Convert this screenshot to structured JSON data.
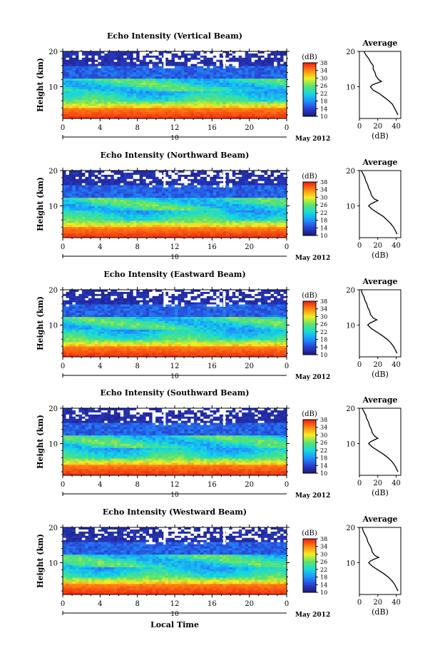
{
  "figure": {
    "xlabel": "Local Time",
    "date_label": "May 2012",
    "day_label": "10"
  },
  "panels": [
    {
      "title": "Echo Intensity (Vertical Beam)"
    },
    {
      "title": "Echo Intensity (Northward Beam)"
    },
    {
      "title": "Echo Intensity (Eastward Beam)"
    },
    {
      "title": "Echo Intensity (Southward Beam)"
    },
    {
      "title": "Echo Intensity (Westward Beam)"
    }
  ],
  "chart_data": [
    {
      "type": "heatmap",
      "title": "Echo Intensity (Vertical Beam)",
      "ylabel": "Height (km)",
      "xticks": [
        "0",
        "4",
        "8",
        "12",
        "16",
        "20",
        "0"
      ],
      "x_range": [
        0,
        24
      ],
      "ylim": [
        1,
        20
      ],
      "yticks": [
        10,
        20
      ],
      "colorbar": {
        "unit": "(dB)",
        "ticks": [
          "10",
          "14",
          "18",
          "22",
          "26",
          "30",
          "34",
          "38"
        ],
        "range": [
          10,
          38
        ]
      },
      "average_profile": {
        "title": "Average",
        "xlabel": "(dB)",
        "xlim": [
          0,
          45
        ],
        "xticks": [
          0,
          20,
          40
        ],
        "yticks": [
          10,
          20
        ],
        "height_km": [
          20,
          19,
          18,
          17,
          16,
          15,
          14,
          13,
          12,
          11.5,
          11,
          10.5,
          10,
          9,
          8,
          7,
          6,
          5,
          4,
          3,
          2
        ],
        "db": [
          5,
          7,
          10,
          12,
          15,
          15,
          17,
          18,
          21,
          24,
          19,
          14,
          12,
          15,
          22,
          27,
          32,
          36,
          38,
          40,
          42
        ]
      }
    },
    {
      "type": "heatmap",
      "title": "Echo Intensity (Northward Beam)",
      "ylabel": "Height (km)",
      "xticks": [
        "0",
        "4",
        "8",
        "12",
        "16",
        "20",
        "0"
      ],
      "x_range": [
        0,
        24
      ],
      "ylim": [
        1,
        20
      ],
      "yticks": [
        10,
        20
      ],
      "colorbar": {
        "unit": "(dB)",
        "ticks": [
          "10",
          "14",
          "18",
          "22",
          "26",
          "30",
          "34",
          "38"
        ],
        "range": [
          10,
          38
        ]
      },
      "average_profile": {
        "title": "Average",
        "xlabel": "(dB)",
        "xlim": [
          0,
          45
        ],
        "xticks": [
          0,
          20,
          40
        ],
        "yticks": [
          10,
          20
        ],
        "height_km": [
          20,
          19,
          18,
          17,
          16,
          15,
          14,
          13,
          12,
          11.5,
          11,
          10.5,
          10,
          9,
          8,
          7,
          6,
          5,
          4,
          3,
          2
        ],
        "db": [
          2,
          4,
          6,
          7,
          9,
          10,
          12,
          13,
          16,
          20,
          16,
          12,
          10,
          14,
          20,
          26,
          30,
          34,
          37,
          39,
          41
        ]
      }
    },
    {
      "type": "heatmap",
      "title": "Echo Intensity (Eastward Beam)",
      "ylabel": "Height (km)",
      "xticks": [
        "0",
        "4",
        "8",
        "12",
        "16",
        "20",
        "0"
      ],
      "x_range": [
        0,
        24
      ],
      "ylim": [
        1,
        20
      ],
      "yticks": [
        10,
        20
      ],
      "colorbar": {
        "unit": "(dB)",
        "ticks": [
          "10",
          "14",
          "18",
          "22",
          "26",
          "30",
          "34",
          "38"
        ],
        "range": [
          10,
          38
        ]
      },
      "average_profile": {
        "title": "Average",
        "xlabel": "(dB)",
        "xlim": [
          0,
          45
        ],
        "xticks": [
          0,
          20,
          40
        ],
        "yticks": [
          10,
          20
        ],
        "height_km": [
          20,
          19,
          18,
          17,
          16,
          15,
          14,
          13,
          12,
          11.5,
          11,
          10.5,
          10,
          9,
          8,
          7,
          6,
          5,
          4,
          3,
          2
        ],
        "db": [
          2,
          3,
          5,
          6,
          8,
          9,
          11,
          12,
          15,
          19,
          15,
          11,
          9,
          13,
          19,
          25,
          30,
          34,
          37,
          39,
          41
        ]
      }
    },
    {
      "type": "heatmap",
      "title": "Echo Intensity (Southward Beam)",
      "ylabel": "Height (km)",
      "xticks": [
        "0",
        "4",
        "8",
        "12",
        "16",
        "20",
        "0"
      ],
      "x_range": [
        0,
        24
      ],
      "ylim": [
        1,
        20
      ],
      "yticks": [
        10,
        20
      ],
      "colorbar": {
        "unit": "(dB)",
        "ticks": [
          "10",
          "14",
          "18",
          "22",
          "26",
          "30",
          "34",
          "38"
        ],
        "range": [
          10,
          38
        ]
      },
      "average_profile": {
        "title": "Average",
        "xlabel": "(dB)",
        "xlim": [
          0,
          45
        ],
        "xticks": [
          0,
          20,
          40
        ],
        "yticks": [
          10,
          20
        ],
        "height_km": [
          20,
          19,
          18,
          17,
          16,
          15,
          14,
          13,
          12,
          11.5,
          11,
          10.5,
          10,
          9,
          8,
          7,
          6,
          5,
          4,
          3,
          2
        ],
        "db": [
          3,
          5,
          7,
          8,
          10,
          11,
          13,
          14,
          17,
          20,
          16,
          12,
          10,
          14,
          20,
          26,
          31,
          35,
          38,
          40,
          42
        ]
      }
    },
    {
      "type": "heatmap",
      "title": "Echo Intensity (Westward Beam)",
      "ylabel": "Height (km)",
      "xticks": [
        "0",
        "4",
        "8",
        "12",
        "16",
        "20",
        "0"
      ],
      "x_range": [
        0,
        24
      ],
      "ylim": [
        1,
        20
      ],
      "yticks": [
        10,
        20
      ],
      "colorbar": {
        "unit": "(dB)",
        "ticks": [
          "10",
          "14",
          "18",
          "22",
          "26",
          "30",
          "34",
          "38"
        ],
        "range": [
          10,
          38
        ]
      },
      "average_profile": {
        "title": "Average",
        "xlabel": "(dB)",
        "xlim": [
          0,
          45
        ],
        "xticks": [
          0,
          20,
          40
        ],
        "yticks": [
          10,
          20
        ],
        "height_km": [
          20,
          19,
          18,
          17,
          16,
          15,
          14,
          13,
          12,
          11.5,
          11,
          10.5,
          10,
          9,
          8,
          7,
          6,
          5,
          4,
          3,
          2
        ],
        "db": [
          3,
          4,
          6,
          8,
          9,
          11,
          13,
          14,
          17,
          21,
          16,
          12,
          10,
          14,
          20,
          26,
          31,
          35,
          38,
          40,
          42
        ]
      }
    }
  ]
}
